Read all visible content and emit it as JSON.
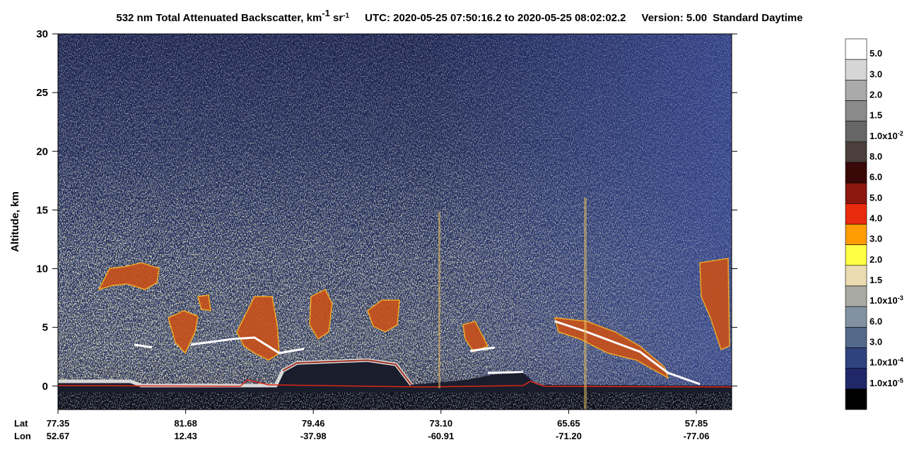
{
  "chart_data": {
    "type": "curtain",
    "title": [
      "532 nm Total Attenuated Backscatter, km",
      "-1",
      " sr",
      "-1"
    ],
    "utc": "UTC:  2020-05-25 07:50:16.2  to  2020-05-25 08:02:02.2",
    "version": "Version: 5.00",
    "mode": "Standard  Daytime",
    "ylabel": "Altitude, km",
    "ylim": [
      -2,
      30
    ],
    "yticks": [
      0,
      5,
      10,
      15,
      20,
      25,
      30
    ],
    "x_row_labels": [
      "Lat",
      "Lon"
    ],
    "xtick_lat": [
      "77.35",
      "81.68",
      "79.46",
      "73.10",
      "65.65",
      "57.85"
    ],
    "xtick_lon": [
      "52.67",
      "12.43",
      "-37.98",
      "-60.91",
      "-71.20",
      "-77.06"
    ],
    "colorbar": {
      "colors": [
        "#ffffff",
        "#d6d6d6",
        "#aaaaaa",
        "#8a8a8a",
        "#666666",
        "#4a3f3b",
        "#3a0806",
        "#8c1810",
        "#ea2a0c",
        "#ff9c00",
        "#ffff44",
        "#eadbb0",
        "#a9aaa2",
        "#8292a2",
        "#54688a",
        "#30437e",
        "#20286a",
        "#000000"
      ],
      "labels": [
        {
          "text": "5.0"
        },
        {
          "text": "3.0"
        },
        {
          "text": "2.0"
        },
        {
          "text": "1.5"
        },
        {
          "text": "1.0x10",
          "exp": "-2"
        },
        {
          "text": "8.0"
        },
        {
          "text": "6.0"
        },
        {
          "text": "5.0"
        },
        {
          "text": "4.0"
        },
        {
          "text": "3.0"
        },
        {
          "text": "2.0"
        },
        {
          "text": "1.5"
        },
        {
          "text": "1.0x10",
          "exp": "-3"
        },
        {
          "text": "6.0"
        },
        {
          "text": "3.0"
        },
        {
          "text": "1.0x10",
          "exp": "-4"
        },
        {
          "text": "1.0x10",
          "exp": "-5"
        }
      ]
    }
  }
}
